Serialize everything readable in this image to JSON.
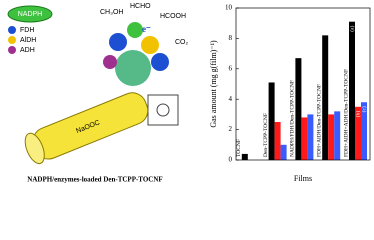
{
  "diagram": {
    "nadph": "NADPH",
    "enzymes": [
      "FDH",
      "AlDH",
      "ADH"
    ],
    "molecules": [
      "CH₃OH",
      "HCHO",
      "HCOOH",
      "CO₂"
    ],
    "electron": "e⁻",
    "polymer_group": "NaOOC",
    "caption": "NADPH/enzymes-loaded Den-TCPP-TOCNF"
  },
  "chart_data": {
    "type": "bar",
    "ylabel": "Gas amount (mg g(film)⁻¹)",
    "xlabel": "Films",
    "categories": [
      "TOCNF",
      "Den-TCPP-TOCNF",
      "NADPH/FDH/Den-TCPP-TOCNF",
      "FDH+AlDH/Den-TCPP-TOCNF",
      "FDH+AlDH+ADH/Den-TCPP-TOCNF"
    ],
    "series": [
      {
        "color": "#000000",
        "values": [
          0.4,
          5.1,
          6.7,
          8.2,
          9.1
        ]
      },
      {
        "color": "#ff1a1a",
        "values": [
          null,
          2.5,
          2.8,
          3.0,
          3.5
        ]
      },
      {
        "color": "#3a5cff",
        "values": [
          null,
          1.0,
          3.0,
          3.2,
          3.8
        ]
      }
    ],
    "bar_labels": [
      "(a)",
      "(b)",
      "(c)"
    ],
    "ylim": [
      0,
      10
    ],
    "yticks": [
      0,
      2,
      4,
      6,
      8,
      10
    ]
  }
}
